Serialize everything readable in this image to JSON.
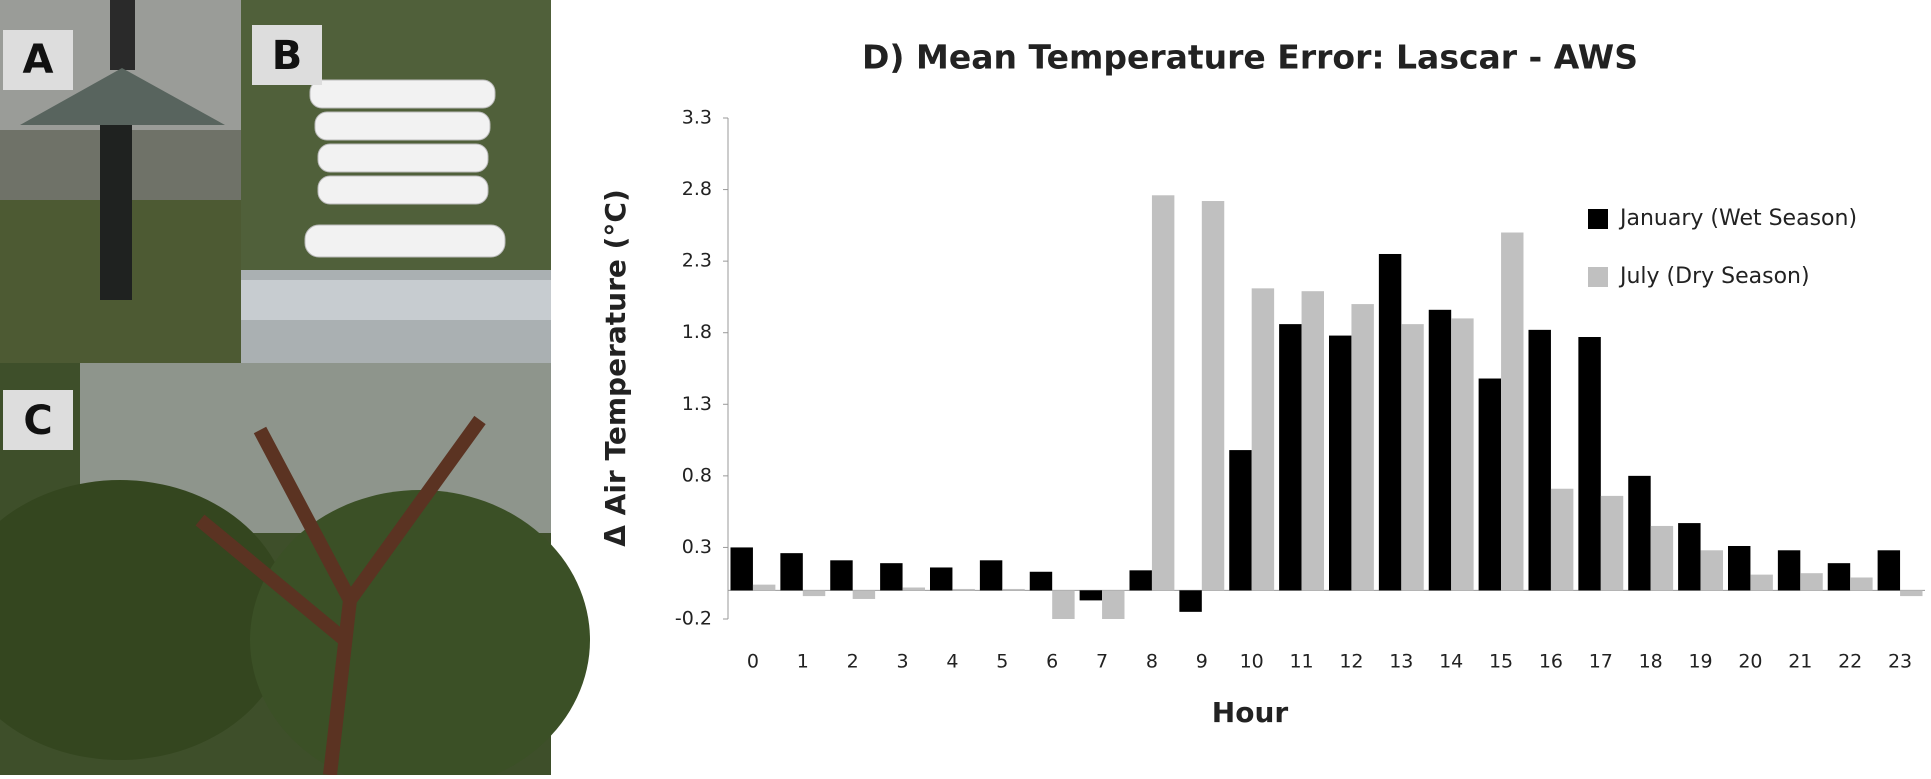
{
  "panels": {
    "a": "A",
    "b": "B",
    "c": "C"
  },
  "chart_data": {
    "type": "bar",
    "title": "D) Mean Temperature Error: Lascar - AWS",
    "x_label": "Hour",
    "y_label": "Δ  Air Temperature  (°C)",
    "categories": [
      "0",
      "1",
      "2",
      "3",
      "4",
      "5",
      "6",
      "7",
      "8",
      "9",
      "10",
      "11",
      "12",
      "13",
      "14",
      "15",
      "16",
      "17",
      "18",
      "19",
      "20",
      "21",
      "22",
      "23"
    ],
    "series": [
      {
        "name": "January (Wet Season)",
        "color": "#000000",
        "values": [
          0.3,
          0.26,
          0.21,
          0.19,
          0.16,
          0.21,
          0.13,
          -0.07,
          0.14,
          -0.15,
          0.98,
          1.86,
          1.78,
          2.35,
          1.96,
          1.48,
          1.82,
          1.77,
          0.8,
          0.47,
          0.31,
          0.28,
          0.19,
          0.28
        ]
      },
      {
        "name": "July (Dry Season)",
        "color": "#c0c0c0",
        "values": [
          0.04,
          -0.04,
          -0.06,
          0.02,
          0.01,
          0.01,
          -0.2,
          -0.2,
          2.76,
          2.72,
          2.11,
          2.09,
          2.0,
          1.86,
          1.9,
          2.5,
          0.71,
          0.66,
          0.45,
          0.28,
          0.11,
          0.12,
          0.09,
          -0.04
        ]
      }
    ],
    "ylim": [
      -0.2,
      3.3
    ],
    "yticks": [
      -0.2,
      0.3,
      0.8,
      1.3,
      1.8,
      2.3,
      2.8,
      3.3
    ],
    "grid": false,
    "legend_position": "top-right"
  }
}
